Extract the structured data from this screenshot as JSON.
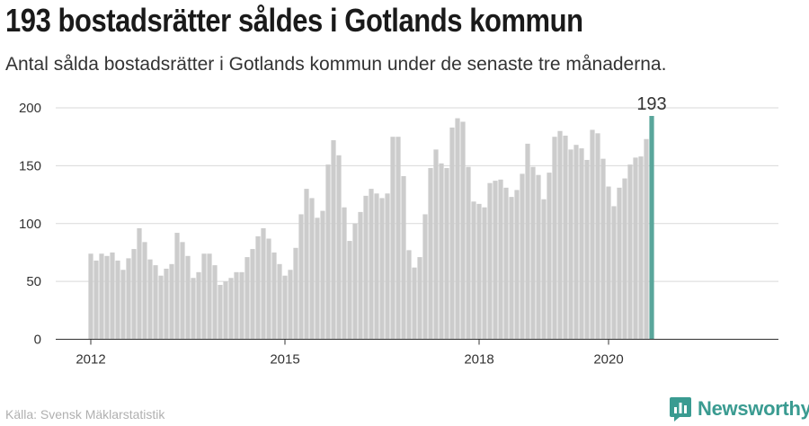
{
  "title": "193 bostadsrätter såldes i Gotlands kommun",
  "subtitle": "Antal sålda bostadsrätter i Gotlands kommun under de senaste tre månaderna.",
  "source": "Källa: Svensk Mäklarstatistik",
  "brand": {
    "name": "Newsworthy",
    "color": "#3a9b91",
    "icon": "bar-chart-speech-bubble-icon"
  },
  "colors": {
    "bar": "#cccccc",
    "highlight": "#5aa69b",
    "grid": "#d9d9d9",
    "axis": "#333333"
  },
  "chart_data": {
    "type": "bar",
    "title": "193 bostadsrätter såldes i Gotlands kommun",
    "xlabel": "",
    "ylabel": "",
    "ylim": [
      0,
      200
    ],
    "yticks": [
      0,
      50,
      100,
      150,
      200
    ],
    "xticks": [
      "2012",
      "2015",
      "2018",
      "2020"
    ],
    "grid": true,
    "highlight_label": "193",
    "series": [
      {
        "start": "2012-01",
        "frequency": "monthly",
        "values": [
          74,
          68,
          74,
          72,
          75,
          68,
          60,
          70,
          78,
          96,
          84,
          69,
          64,
          55,
          61,
          65,
          92,
          84,
          72,
          53,
          58,
          74,
          74,
          64,
          47,
          50,
          53,
          58,
          58,
          71,
          78,
          89,
          96,
          87,
          75,
          65,
          55,
          60,
          79,
          108,
          130,
          122,
          105,
          111,
          151,
          172,
          159,
          114,
          85,
          100,
          110,
          124,
          130,
          126,
          122,
          126,
          175,
          175,
          141,
          77,
          62,
          71,
          108,
          148,
          164,
          152,
          148,
          183,
          191,
          188,
          149,
          119,
          117,
          114,
          135,
          137,
          138,
          131,
          123,
          129,
          143,
          169,
          149,
          142,
          121,
          144,
          175,
          180,
          176,
          164,
          168,
          165,
          155,
          181,
          178,
          156,
          132,
          115,
          131,
          139,
          151,
          157,
          158,
          173,
          193
        ]
      }
    ]
  }
}
